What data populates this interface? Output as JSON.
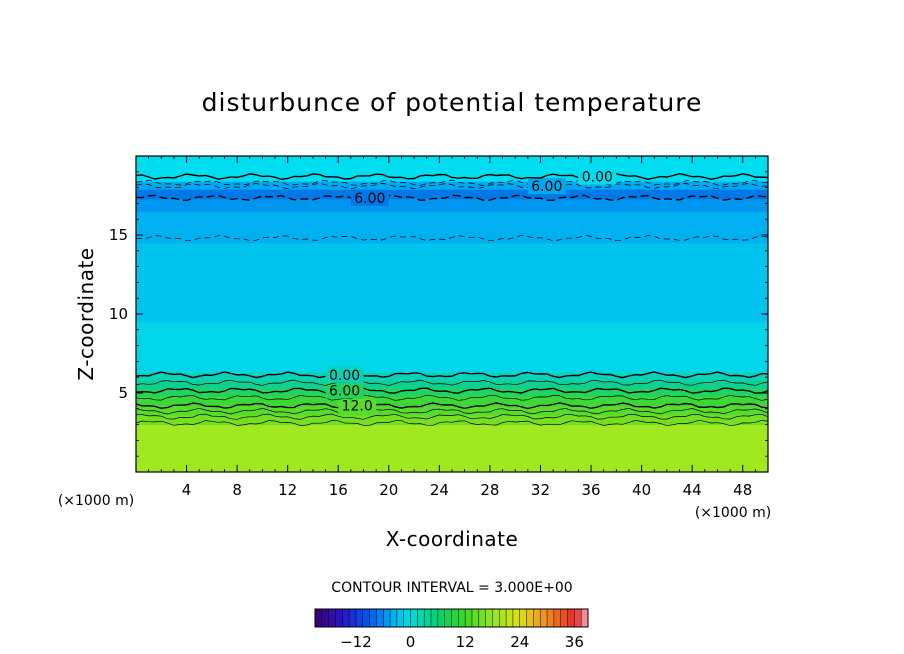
{
  "chart_data": {
    "type": "heatmap",
    "title": "disturbunce of potential temperature",
    "xlabel": "X-coordinate",
    "ylabel": "Z-coordinate",
    "x_unit_left": "(×1000 m)",
    "x_unit_right": "(×1000 m)",
    "xlim": [
      0,
      50
    ],
    "ylim": [
      0,
      20
    ],
    "x_ticks": [
      4,
      8,
      12,
      16,
      20,
      24,
      28,
      32,
      36,
      40,
      44,
      48
    ],
    "x_tick_labels": [
      "4",
      "8",
      "12",
      "16",
      "20",
      "24",
      "28",
      "32",
      "36",
      "40",
      "44",
      "48"
    ],
    "y_ticks": [
      5,
      10,
      15
    ],
    "y_tick_labels": [
      "5",
      "10",
      "15"
    ],
    "color_bands": [
      {
        "z_from": 0,
        "z_to": 3,
        "value": 21,
        "color": "#a0e820"
      },
      {
        "z_from": 3,
        "z_to": 3.6,
        "value": 18,
        "color": "#74e020"
      },
      {
        "z_from": 3.6,
        "z_to": 4.2,
        "value": 15,
        "color": "#58dc2c"
      },
      {
        "z_from": 4.2,
        "z_to": 4.8,
        "value": 12,
        "color": "#3cd838"
      },
      {
        "z_from": 4.8,
        "z_to": 5.3,
        "value": 9,
        "color": "#20d460"
      },
      {
        "z_from": 5.3,
        "z_to": 5.8,
        "value": 6,
        "color": "#10d090"
      },
      {
        "z_from": 5.8,
        "z_to": 6.3,
        "value": 3,
        "color": "#08d2b8"
      },
      {
        "z_from": 6.3,
        "z_to": 9.5,
        "value": -1.5,
        "color": "#00d6e8"
      },
      {
        "z_from": 9.5,
        "z_to": 14.5,
        "value": -3,
        "color": "#00c4ee"
      },
      {
        "z_from": 14.5,
        "z_to": 16.5,
        "value": -4.5,
        "color": "#00b0f0"
      },
      {
        "z_from": 16.5,
        "z_to": 17.3,
        "value": -6,
        "color": "#0096f0"
      },
      {
        "z_from": 17.3,
        "z_to": 17.9,
        "value": -7.5,
        "color": "#0078e8"
      },
      {
        "z_from": 17.9,
        "z_to": 18.4,
        "value": -4.5,
        "color": "#00a8f2"
      },
      {
        "z_from": 18.4,
        "z_to": 20,
        "value": -1.5,
        "color": "#00dcf0"
      }
    ],
    "contour_lines": [
      {
        "level": 21,
        "z": 3.1,
        "style": "solid-thin"
      },
      {
        "level": 18,
        "z": 3.5,
        "style": "solid-thin"
      },
      {
        "level": 15,
        "z": 3.85,
        "style": "solid-thin"
      },
      {
        "level": 12,
        "z": 4.2,
        "style": "solid",
        "label": "12.0",
        "label_x": 17.5
      },
      {
        "level": 9,
        "z": 4.7,
        "style": "solid-thin"
      },
      {
        "level": 6,
        "z": 5.15,
        "style": "solid",
        "label": "6.00",
        "label_x": 16.5
      },
      {
        "level": 3,
        "z": 5.65,
        "style": "solid-thin"
      },
      {
        "level": 0,
        "z": 6.15,
        "style": "solid",
        "label": "0.00",
        "label_x": 16.5
      },
      {
        "level": -3,
        "z": 14.8,
        "style": "dashed-thin"
      },
      {
        "level": -6,
        "z": 17.35,
        "style": "dashed",
        "label": "6.00",
        "label_x": 18.5
      },
      {
        "level": -3,
        "z": 18.3,
        "style": "dashed-thin"
      },
      {
        "level": -6,
        "z": 18.1,
        "style": "dashed-thin",
        "label": "6.00",
        "label_x": 32.5
      },
      {
        "level": 0,
        "z": 18.7,
        "style": "solid",
        "label": "0.00",
        "label_x": 36.5
      }
    ],
    "contour_interval_label": "CONTOUR INTERVAL = 3.000E+00",
    "colorbar": {
      "range": [
        -21,
        39
      ],
      "ticks": [
        -12,
        0,
        12,
        24,
        36
      ],
      "tick_labels": [
        "−12",
        "0",
        "12",
        "24",
        "36"
      ]
    }
  }
}
